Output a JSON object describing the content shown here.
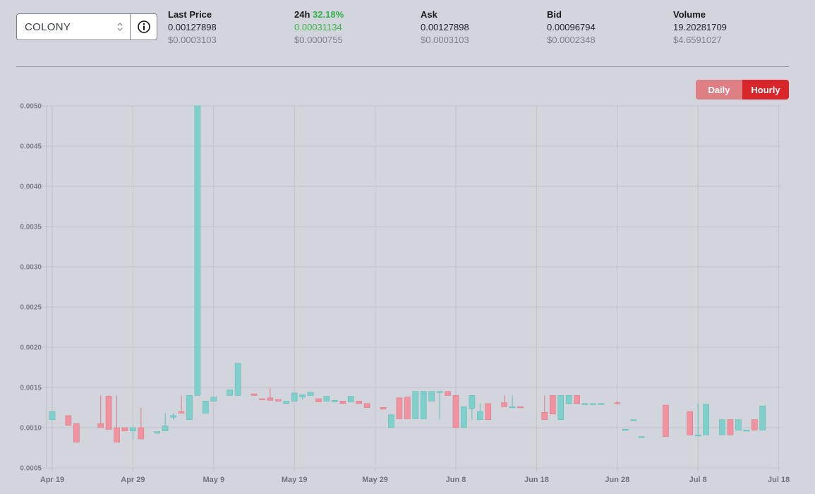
{
  "selector": {
    "value": "COLONY"
  },
  "stats": {
    "last_price": {
      "label": "Last Price",
      "value": "0.00127898",
      "usd": "$0.0003103"
    },
    "change_24h": {
      "label": "24h",
      "percent": "32.18%",
      "value": "0.00031134",
      "usd": "$0.0000755"
    },
    "ask": {
      "label": "Ask",
      "value": "0.00127898",
      "usd": "$0.0003103"
    },
    "bid": {
      "label": "Bid",
      "value": "0.00096794",
      "usd": "$0.0002348"
    },
    "volume": {
      "label": "Volume",
      "value": "19.20281709",
      "usd": "$4.6591027"
    }
  },
  "toggle": {
    "daily": "Daily",
    "hourly": "Hourly",
    "active": "Hourly"
  },
  "colors": {
    "up": "#7fcfcb",
    "down": "#f0929f",
    "accent": "#d9262a"
  },
  "chart_data": {
    "type": "candlestick",
    "title": "",
    "xlabel": "",
    "ylabel": "",
    "ylim": [
      0.0005,
      0.005
    ],
    "y_ticks": [
      "0.0050",
      "0.0045",
      "0.0040",
      "0.0035",
      "0.0030",
      "0.0025",
      "0.0020",
      "0.0015",
      "0.0010",
      "0.0005"
    ],
    "x_ticks": [
      "Apr 19",
      "Apr 29",
      "May 9",
      "May 19",
      "May 29",
      "Jun 8",
      "Jun 18",
      "Jun 28",
      "Jul 8",
      "Jul 18"
    ],
    "grid": true,
    "candles": [
      {
        "day": 0,
        "o": 0.0011,
        "c": 0.0012,
        "h": 0.0012,
        "l": 0.0011
      },
      {
        "day": 2,
        "o": 0.00115,
        "c": 0.00103,
        "h": 0.00115,
        "l": 0.00103
      },
      {
        "day": 3,
        "o": 0.00105,
        "c": 0.00082,
        "h": 0.00105,
        "l": 0.00082
      },
      {
        "day": 6,
        "o": 0.00105,
        "c": 0.001,
        "h": 0.0014,
        "l": 0.001
      },
      {
        "day": 7,
        "o": 0.00139,
        "c": 0.00098,
        "h": 0.0014,
        "l": 0.00098
      },
      {
        "day": 8,
        "o": 0.001,
        "c": 0.00082,
        "h": 0.0014,
        "l": 0.00082
      },
      {
        "day": 9,
        "o": 0.001,
        "c": 0.00096,
        "h": 0.001,
        "l": 0.00096
      },
      {
        "day": 10,
        "o": 0.00096,
        "c": 0.001,
        "h": 0.001,
        "l": 0.00085
      },
      {
        "day": 11,
        "o": 0.001,
        "c": 0.00086,
        "h": 0.00125,
        "l": 0.00086
      },
      {
        "day": 13,
        "o": 0.00093,
        "c": 0.00095,
        "h": 0.00095,
        "l": 0.00093
      },
      {
        "day": 14,
        "o": 0.00096,
        "c": 0.00102,
        "h": 0.00118,
        "l": 0.00096
      },
      {
        "day": 15,
        "o": 0.00113,
        "c": 0.00115,
        "h": 0.00118,
        "l": 0.0011
      },
      {
        "day": 16,
        "o": 0.0012,
        "c": 0.00118,
        "h": 0.0014,
        "l": 0.00118
      },
      {
        "day": 17,
        "o": 0.0011,
        "c": 0.0014,
        "h": 0.0014,
        "l": 0.0011
      },
      {
        "day": 18,
        "o": 0.0014,
        "c": 0.005,
        "h": 0.005,
        "l": 0.0014
      },
      {
        "day": 19,
        "o": 0.00118,
        "c": 0.00133,
        "h": 0.00133,
        "l": 0.00118
      },
      {
        "day": 20,
        "o": 0.00133,
        "c": 0.00138,
        "h": 0.00138,
        "l": 0.00133
      },
      {
        "day": 22,
        "o": 0.0014,
        "c": 0.00147,
        "h": 0.00147,
        "l": 0.0014
      },
      {
        "day": 23,
        "o": 0.0014,
        "c": 0.0018,
        "h": 0.0018,
        "l": 0.0014
      },
      {
        "day": 25,
        "o": 0.00142,
        "c": 0.0014,
        "h": 0.00142,
        "l": 0.0014
      },
      {
        "day": 26,
        "o": 0.00136,
        "c": 0.00135,
        "h": 0.00136,
        "l": 0.00135
      },
      {
        "day": 27,
        "o": 0.00137,
        "c": 0.00134,
        "h": 0.0015,
        "l": 0.00134
      },
      {
        "day": 28,
        "o": 0.00135,
        "c": 0.00133,
        "h": 0.00135,
        "l": 0.00133
      },
      {
        "day": 29,
        "o": 0.0013,
        "c": 0.00133,
        "h": 0.00133,
        "l": 0.0013
      },
      {
        "day": 30,
        "o": 0.00133,
        "c": 0.00143,
        "h": 0.00143,
        "l": 0.00133
      },
      {
        "day": 31,
        "o": 0.00138,
        "c": 0.00141,
        "h": 0.00141,
        "l": 0.00135
      },
      {
        "day": 32,
        "o": 0.0014,
        "c": 0.00144,
        "h": 0.00144,
        "l": 0.0014
      },
      {
        "day": 33,
        "o": 0.00136,
        "c": 0.00132,
        "h": 0.00136,
        "l": 0.00132
      },
      {
        "day": 34,
        "o": 0.00133,
        "c": 0.00139,
        "h": 0.00139,
        "l": 0.00133
      },
      {
        "day": 35,
        "o": 0.00132,
        "c": 0.00134,
        "h": 0.00134,
        "l": 0.00132
      },
      {
        "day": 36,
        "o": 0.00133,
        "c": 0.0013,
        "h": 0.00133,
        "l": 0.0013
      },
      {
        "day": 37,
        "o": 0.00132,
        "c": 0.00139,
        "h": 0.00139,
        "l": 0.00132
      },
      {
        "day": 38,
        "o": 0.00133,
        "c": 0.0013,
        "h": 0.00133,
        "l": 0.0013
      },
      {
        "day": 39,
        "o": 0.0013,
        "c": 0.00125,
        "h": 0.0013,
        "l": 0.00125
      },
      {
        "day": 41,
        "o": 0.00125,
        "c": 0.00123,
        "h": 0.00125,
        "l": 0.00123
      },
      {
        "day": 42,
        "o": 0.001,
        "c": 0.00116,
        "h": 0.00116,
        "l": 0.001
      },
      {
        "day": 43,
        "o": 0.00137,
        "c": 0.00111,
        "h": 0.00137,
        "l": 0.00111
      },
      {
        "day": 44,
        "o": 0.00138,
        "c": 0.00111,
        "h": 0.00138,
        "l": 0.00111
      },
      {
        "day": 45,
        "o": 0.00111,
        "c": 0.00145,
        "h": 0.00145,
        "l": 0.00111
      },
      {
        "day": 46,
        "o": 0.00111,
        "c": 0.00145,
        "h": 0.00145,
        "l": 0.00111
      },
      {
        "day": 47,
        "o": 0.00133,
        "c": 0.00145,
        "h": 0.00145,
        "l": 0.00133
      },
      {
        "day": 48,
        "o": 0.00144,
        "c": 0.00145,
        "h": 0.00145,
        "l": 0.0011
      },
      {
        "day": 49,
        "o": 0.00145,
        "c": 0.0014,
        "h": 0.00145,
        "l": 0.0014
      },
      {
        "day": 50,
        "o": 0.0014,
        "c": 0.001,
        "h": 0.0014,
        "l": 0.001
      },
      {
        "day": 51,
        "o": 0.001,
        "c": 0.00126,
        "h": 0.00126,
        "l": 0.001
      },
      {
        "day": 52,
        "o": 0.00124,
        "c": 0.0014,
        "h": 0.0014,
        "l": 0.0011
      },
      {
        "day": 53,
        "o": 0.0011,
        "c": 0.0012,
        "h": 0.0013,
        "l": 0.0011
      },
      {
        "day": 54,
        "o": 0.0013,
        "c": 0.0011,
        "h": 0.0013,
        "l": 0.0011
      },
      {
        "day": 56,
        "o": 0.00131,
        "c": 0.00126,
        "h": 0.0014,
        "l": 0.00126
      },
      {
        "day": 57,
        "o": 0.00125,
        "c": 0.00126,
        "h": 0.0014,
        "l": 0.00125
      },
      {
        "day": 58,
        "o": 0.00126,
        "c": 0.00125,
        "h": 0.00126,
        "l": 0.00125
      },
      {
        "day": 61,
        "o": 0.00119,
        "c": 0.0011,
        "h": 0.0014,
        "l": 0.0011
      },
      {
        "day": 62,
        "o": 0.0014,
        "c": 0.00117,
        "h": 0.0014,
        "l": 0.00117
      },
      {
        "day": 63,
        "o": 0.0011,
        "c": 0.0014,
        "h": 0.0014,
        "l": 0.0011
      },
      {
        "day": 64,
        "o": 0.0013,
        "c": 0.0014,
        "h": 0.0014,
        "l": 0.0013
      },
      {
        "day": 65,
        "o": 0.0014,
        "c": 0.0013,
        "h": 0.0014,
        "l": 0.0013
      },
      {
        "day": 66,
        "o": 0.0013,
        "c": 0.0013,
        "h": 0.0013,
        "l": 0.0013
      },
      {
        "day": 67,
        "o": 0.0013,
        "c": 0.0013,
        "h": 0.0013,
        "l": 0.0013
      },
      {
        "day": 68,
        "o": 0.0013,
        "c": 0.0013,
        "h": 0.0013,
        "l": 0.0013
      },
      {
        "day": 70,
        "o": 0.00131,
        "c": 0.0013,
        "h": 0.00133,
        "l": 0.0013
      },
      {
        "day": 71,
        "o": 0.00098,
        "c": 0.00098,
        "h": 0.00098,
        "l": 0.00098
      },
      {
        "day": 72,
        "o": 0.0011,
        "c": 0.0011,
        "h": 0.0011,
        "l": 0.0011
      },
      {
        "day": 73,
        "o": 0.00089,
        "c": 0.00089,
        "h": 0.00089,
        "l": 0.00089
      },
      {
        "day": 76,
        "o": 0.00128,
        "c": 0.00089,
        "h": 0.00128,
        "l": 0.00089
      },
      {
        "day": 79,
        "o": 0.0012,
        "c": 0.00091,
        "h": 0.0012,
        "l": 0.00091
      },
      {
        "day": 80,
        "o": 0.00091,
        "c": 0.00091,
        "h": 0.0013,
        "l": 0.00091
      },
      {
        "day": 81,
        "o": 0.00091,
        "c": 0.00129,
        "h": 0.00129,
        "l": 0.00091
      },
      {
        "day": 83,
        "o": 0.00091,
        "c": 0.0011,
        "h": 0.0011,
        "l": 0.00091
      },
      {
        "day": 84,
        "o": 0.0011,
        "c": 0.00091,
        "h": 0.0011,
        "l": 0.00091
      },
      {
        "day": 85,
        "o": 0.00097,
        "c": 0.0011,
        "h": 0.0011,
        "l": 0.00097
      },
      {
        "day": 86,
        "o": 0.00097,
        "c": 0.00097,
        "h": 0.00097,
        "l": 0.00097
      },
      {
        "day": 87,
        "o": 0.0011,
        "c": 0.00097,
        "h": 0.0011,
        "l": 0.00097
      },
      {
        "day": 88,
        "o": 0.00097,
        "c": 0.00127,
        "h": 0.00127,
        "l": 0.00097
      }
    ]
  }
}
